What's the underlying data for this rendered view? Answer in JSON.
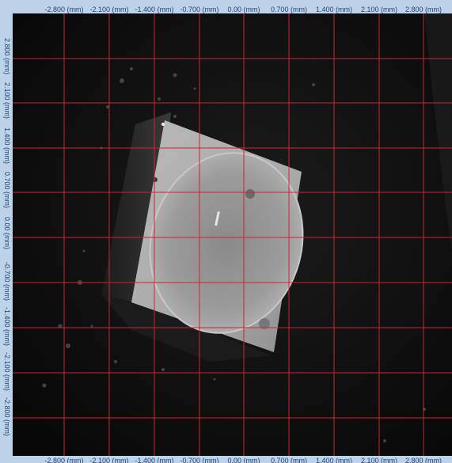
{
  "x_axis_labels": [
    "-2.800 (mm)",
    "-2.100 (mm)",
    "-1.400 (mm)",
    "-0.700 (mm)",
    "0.00 (mm)",
    "0.700 (mm)",
    "1.400 (mm)",
    "2.100 (mm)",
    "2.800 (mm)"
  ],
  "y_axis_labels": [
    "2.800 (mm)",
    "2.100 (mm)",
    "1.400 (mm)",
    "0.700 (mm)",
    "0.00 (mm)",
    "-0.700 (mm)",
    "-1.400 (mm)",
    "-2.100 (mm)",
    "-2.800 (mm)"
  ],
  "grid_color": "#c8282d",
  "ruler_background": "#bcd3ea",
  "ruler_text_color": "#2a3f73",
  "image_background": "#0d0d0d",
  "image_subject": "Square LED package with circular lens viewed under microscope"
}
